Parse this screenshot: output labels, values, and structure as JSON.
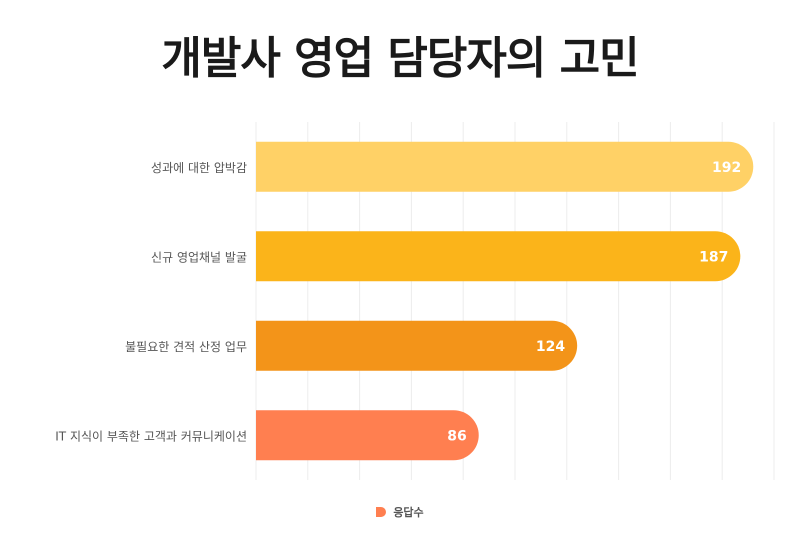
{
  "chart_data": {
    "type": "bar",
    "orientation": "horizontal",
    "title": "개발사 영업 담당자의 고민",
    "categories": [
      "성과에 대한 압박감",
      "신규 영업채널 발굴",
      "불필요한 견적 산정 업무",
      "IT 지식이 부족한 고객과 커뮤니케이션"
    ],
    "series": [
      {
        "name": "응답수",
        "values": [
          192,
          187,
          124,
          86
        ],
        "colors": [
          "#ffd166",
          "#fbb41a",
          "#f39419",
          "#ff7f50"
        ]
      }
    ],
    "xlim": [
      0,
      200
    ],
    "grid": true,
    "legend_position": "bottom",
    "data_labels": true
  }
}
